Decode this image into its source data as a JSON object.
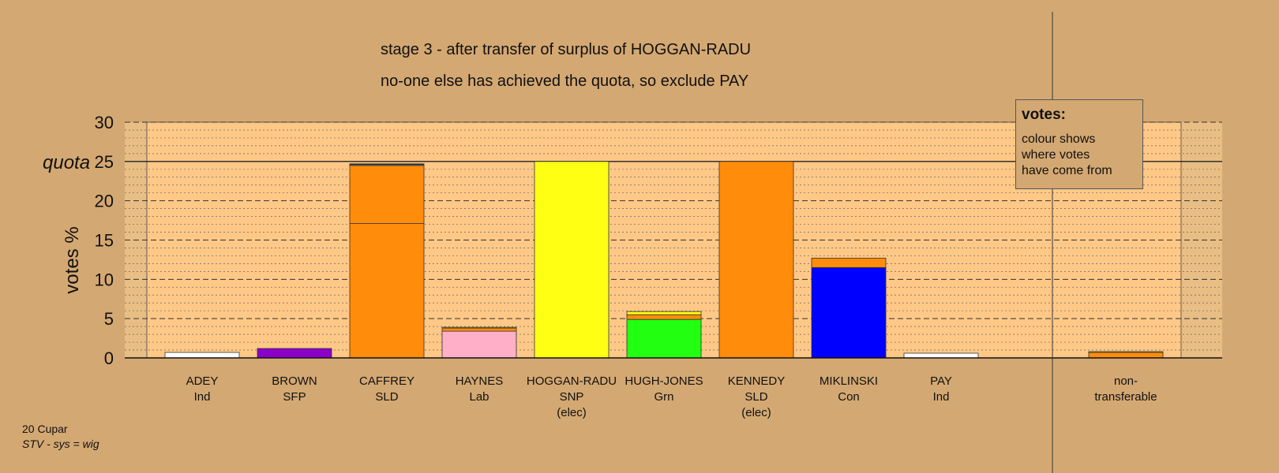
{
  "title_line1": "stage 3 - after transfer of surplus of HOGGAN-RADU",
  "title_line2": "no-one else has achieved the quota, so exclude PAY",
  "legend": {
    "title": "votes:",
    "body": [
      "colour shows",
      "where votes",
      "have come from"
    ]
  },
  "footer": {
    "line1": "20 Cupar",
    "line2": "STV - sys = wig"
  },
  "chart_data": {
    "type": "bar",
    "stacked": true,
    "ylabel": "votes %",
    "ylim": [
      0,
      30
    ],
    "yticks": [
      0,
      5,
      10,
      15,
      20,
      25,
      30
    ],
    "quota": 25,
    "quota_label": "quota",
    "grid": true,
    "colors": {
      "Ind": "#ffffff",
      "SFP": "#8b00c8",
      "SLD": "#ff8c0a",
      "Lab": "#ffb0c8",
      "SNP": "#ffff14",
      "Grn": "#22ff10",
      "Con": "#0000ff"
    },
    "candidates": [
      {
        "name": "ADEY",
        "party": "Ind",
        "status": "",
        "segments": [
          {
            "from": "Ind",
            "value": 0.7
          }
        ]
      },
      {
        "name": "BROWN",
        "party": "SFP",
        "status": "",
        "segments": [
          {
            "from": "SFP",
            "value": 1.2
          }
        ]
      },
      {
        "name": "CAFFREY",
        "party": "SLD",
        "status": "",
        "segments": [
          {
            "from": "SLD",
            "value": 17.1
          },
          {
            "from": "SLD",
            "value": 7.4
          },
          {
            "from": "SNP",
            "value": 0.1
          },
          {
            "from": "Con",
            "value": 0.1
          }
        ]
      },
      {
        "name": "HAYNES",
        "party": "Lab",
        "status": "",
        "segments": [
          {
            "from": "Lab",
            "value": 3.4
          },
          {
            "from": "SLD",
            "value": 0.4
          },
          {
            "from": "SNP",
            "value": 0.1
          }
        ]
      },
      {
        "name": "HOGGAN-RADU",
        "party": "SNP",
        "status": "(elec)",
        "segments": [
          {
            "from": "SNP",
            "value": 25.0
          }
        ]
      },
      {
        "name": "HUGH-JONES",
        "party": "Grn",
        "status": "",
        "segments": [
          {
            "from": "Grn",
            "value": 4.9
          },
          {
            "from": "SLD",
            "value": 0.6
          },
          {
            "from": "SNP",
            "value": 0.4
          }
        ]
      },
      {
        "name": "KENNEDY",
        "party": "SLD",
        "status": "(elec)",
        "segments": [
          {
            "from": "SLD",
            "value": 25.0
          }
        ]
      },
      {
        "name": "MIKLINSKI",
        "party": "Con",
        "status": "",
        "segments": [
          {
            "from": "Con",
            "value": 11.5
          },
          {
            "from": "SLD",
            "value": 1.2
          }
        ]
      },
      {
        "name": "PAY",
        "party": "Ind",
        "status": "",
        "segments": [
          {
            "from": "Ind",
            "value": 0.6
          }
        ]
      }
    ],
    "nontransferable": {
      "label_line1": "non-",
      "label_line2": "transferable",
      "segments": [
        {
          "from": "SLD",
          "value": 0.7
        },
        {
          "from": "SNP",
          "value": 0.1
        }
      ]
    }
  }
}
